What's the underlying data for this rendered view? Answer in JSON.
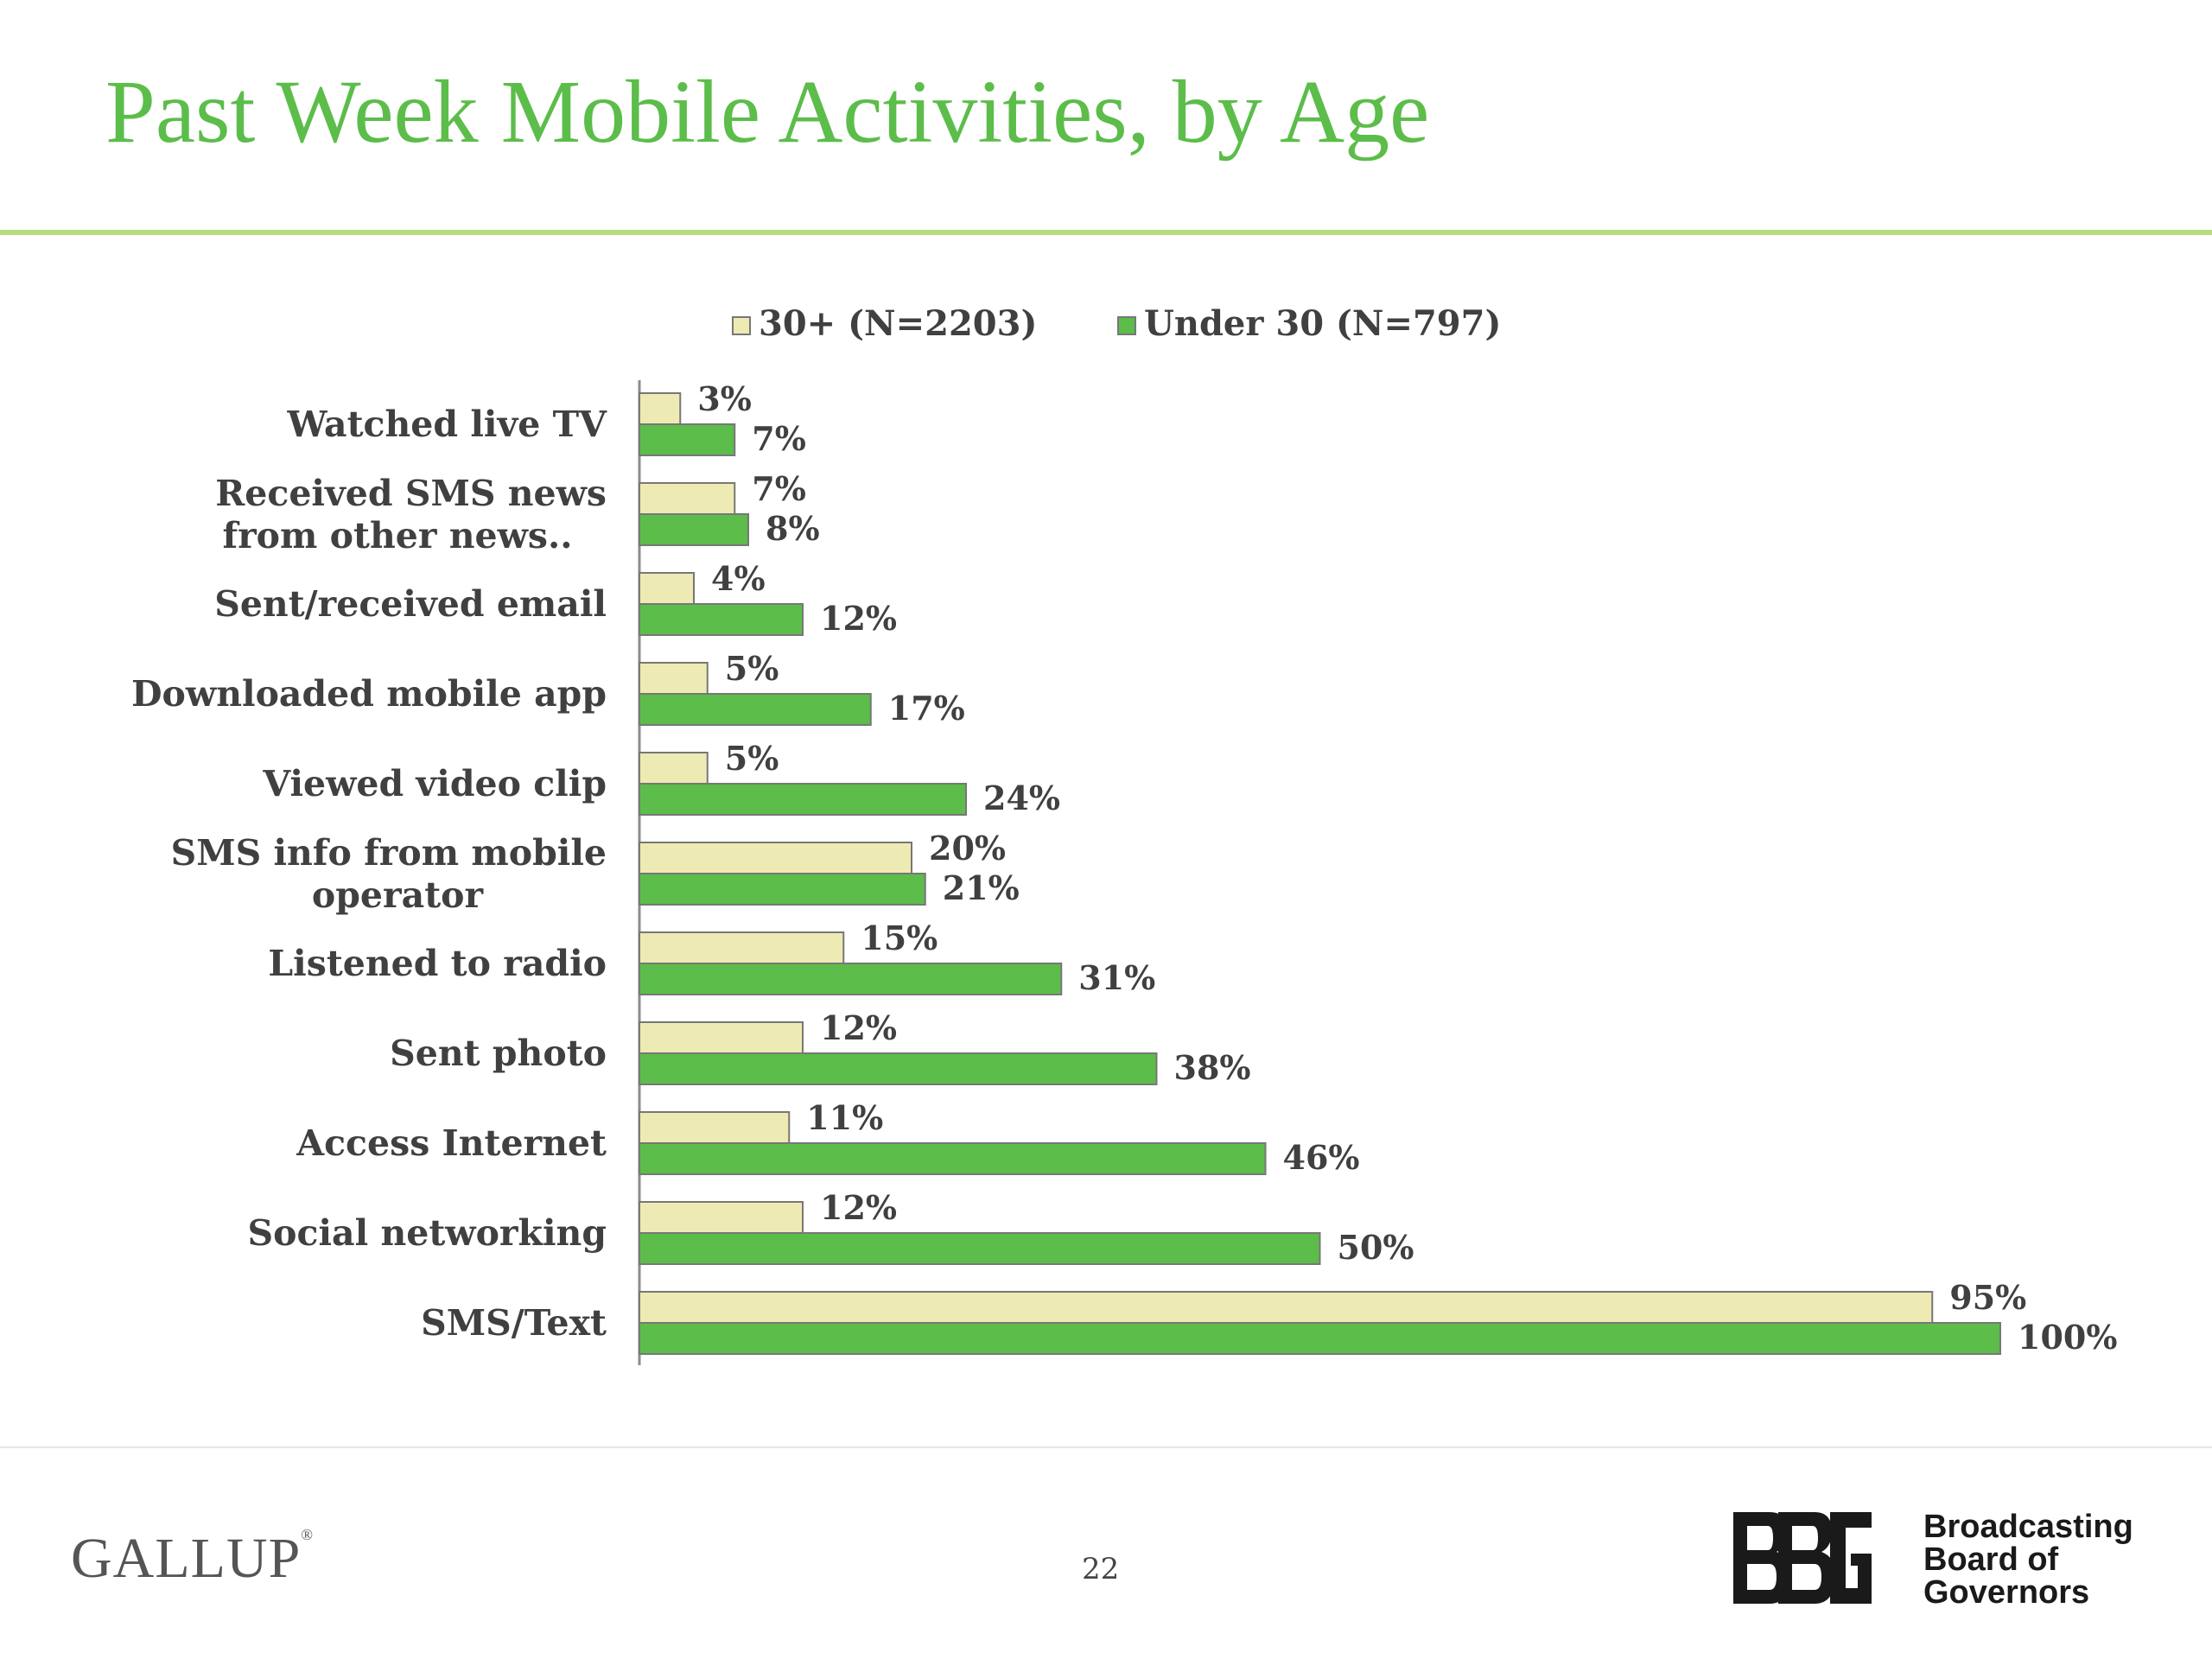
{
  "slide": {
    "title": "Past Week Mobile Activities, by Age",
    "page_number": "22"
  },
  "footer": {
    "gallup_logo_text": "GALLUP",
    "gallup_registered_mark": "®",
    "bbg_lines": [
      "Broadcasting",
      "Board of",
      "Governors"
    ]
  },
  "colors": {
    "title": "#5cbd4a",
    "rule": "#b7dd7e",
    "over30": "#eeeab3",
    "under30": "#5cbd4a",
    "bar_border": "#777777"
  },
  "chart_data": {
    "type": "bar",
    "orientation": "horizontal",
    "title": "",
    "xlabel": "",
    "ylabel": "",
    "xlim": [
      0,
      100
    ],
    "legend_position": "top",
    "grid": false,
    "categories": [
      "Watched live TV",
      "Received SMS news from other news..",
      "Sent/received email",
      "Downloaded mobile app",
      "Viewed video clip",
      "SMS info from mobile operator",
      "Listened to radio",
      "Sent photo",
      "Access Internet",
      "Social networking",
      "SMS/Text"
    ],
    "category_label_lines": [
      [
        "Watched live TV"
      ],
      [
        "Received SMS news",
        "from other news.."
      ],
      [
        "Sent/received email"
      ],
      [
        "Downloaded mobile app"
      ],
      [
        "Viewed video clip"
      ],
      [
        "SMS info from mobile",
        "operator"
      ],
      [
        "Listened to radio"
      ],
      [
        "Sent photo"
      ],
      [
        "Access Internet"
      ],
      [
        "Social networking"
      ],
      [
        "SMS/Text"
      ]
    ],
    "series": [
      {
        "name": "30+ (N=2203)",
        "color": "#eeeab3",
        "values": [
          3,
          7,
          4,
          5,
          5,
          20,
          15,
          12,
          11,
          12,
          95
        ],
        "labels": [
          "3%",
          "7%",
          "4%",
          "5%",
          "5%",
          "20%",
          "15%",
          "12%",
          "11%",
          "12%",
          "95%"
        ]
      },
      {
        "name": "Under 30 (N=797)",
        "color": "#5cbd4a",
        "values": [
          7,
          8,
          12,
          17,
          24,
          21,
          31,
          38,
          46,
          50,
          100
        ],
        "labels": [
          "7%",
          "8%",
          "12%",
          "17%",
          "24%",
          "21%",
          "31%",
          "38%",
          "46%",
          "50%",
          "100%"
        ]
      }
    ]
  }
}
